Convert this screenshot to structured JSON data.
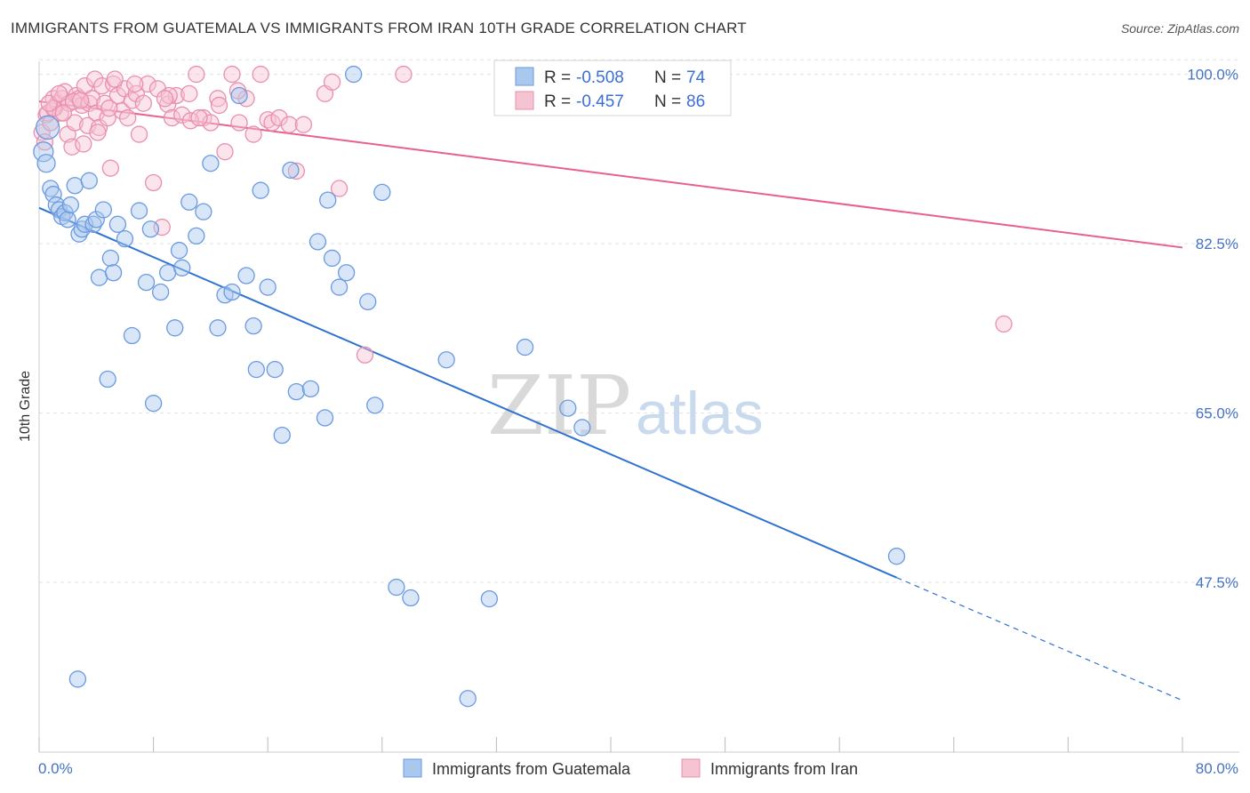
{
  "title": "IMMIGRANTS FROM GUATEMALA VS IMMIGRANTS FROM IRAN 10TH GRADE CORRELATION CHART",
  "source": "Source: ZipAtlas.com",
  "watermark": {
    "zip": "ZIP",
    "atlas": "atlas"
  },
  "stats": [
    {
      "r_label": "R =",
      "r_value": "-0.508",
      "n_label": "N =",
      "n_value": "74",
      "color": "#aac8ee",
      "edge": "#6a9ae0"
    },
    {
      "r_label": "R =",
      "r_value": "-0.457",
      "n_label": "N =",
      "n_value": "86",
      "color": "#f6c3d3",
      "edge": "#e98fae"
    }
  ],
  "legend": [
    {
      "label": "Immigrants from Guatemala",
      "color": "#aac8ee",
      "edge": "#6a9ae0"
    },
    {
      "label": "Immigrants from Iran",
      "color": "#f6c3d3",
      "edge": "#e98fae"
    }
  ],
  "chart_data": {
    "type": "scatter",
    "title": "IMMIGRANTS FROM GUATEMALA VS IMMIGRANTS FROM IRAN 10TH GRADE CORRELATION CHART",
    "xlabel": "",
    "ylabel": "10th Grade",
    "xlim": [
      0,
      80
    ],
    "ylim": [
      30,
      101.5
    ],
    "x_tick_labels": [
      "0.0%",
      "80.0%"
    ],
    "y_ticks": [
      47.5,
      65.0,
      82.5,
      100.0
    ],
    "y_tick_labels": [
      "47.5%",
      "65.0%",
      "82.5%",
      "100.0%"
    ],
    "grid": true,
    "legend_position": "bottom",
    "series": [
      {
        "name": "Immigrants from Guatemala",
        "color": "#4f8ee0",
        "line_color": "#2f73d0",
        "trend": {
          "x0": 0,
          "y0": 86.2,
          "x1": 60,
          "y1": 48.0,
          "dash_to_x": 80,
          "dash_to_y": 35.3
        },
        "x": [
          0.3,
          0.5,
          0.8,
          1.0,
          1.2,
          1.4,
          1.6,
          1.8,
          2.0,
          2.2,
          2.5,
          2.8,
          3.0,
          3.2,
          3.5,
          3.8,
          4.0,
          4.2,
          4.5,
          5.0,
          5.2,
          5.5,
          6.0,
          6.5,
          7.0,
          7.5,
          7.8,
          8.0,
          8.5,
          9.0,
          9.5,
          10.0,
          10.5,
          11.0,
          11.5,
          12.0,
          12.5,
          13.0,
          13.5,
          14.0,
          14.5,
          15.0,
          15.2,
          15.5,
          16.0,
          16.5,
          17.0,
          18.0,
          19.0,
          19.5,
          20.0,
          20.5,
          21.0,
          21.5,
          22.0,
          23.0,
          23.5,
          24.0,
          25.0,
          26.0,
          28.5,
          30.0,
          31.5,
          34.0,
          35.0,
          37.0,
          38.0,
          60.0,
          0.6,
          2.7,
          4.8,
          9.8,
          17.6,
          20.2
        ],
        "y": [
          92.0,
          90.8,
          88.2,
          87.6,
          86.5,
          86.0,
          85.3,
          85.7,
          85.0,
          86.5,
          88.5,
          83.5,
          84.0,
          84.5,
          89.0,
          84.5,
          85.0,
          79.0,
          86.0,
          81.0,
          79.5,
          84.5,
          83.0,
          73.0,
          85.9,
          78.5,
          84.0,
          66.0,
          77.5,
          79.5,
          73.8,
          80.0,
          86.8,
          83.3,
          85.8,
          90.8,
          73.8,
          77.2,
          77.5,
          97.8,
          79.2,
          74.0,
          69.5,
          88.0,
          78.0,
          69.5,
          62.7,
          67.2,
          67.5,
          82.7,
          64.5,
          81.0,
          78.0,
          79.5,
          100.0,
          76.5,
          65.8,
          87.8,
          47.0,
          45.9,
          70.5,
          35.5,
          45.8,
          71.8,
          97.0,
          65.5,
          63.5,
          50.2,
          94.5,
          37.5,
          68.5,
          81.8,
          90.1,
          87.0
        ],
        "sizes": [
          22,
          20,
          18,
          18,
          18,
          18,
          18,
          18,
          18,
          18,
          18,
          18,
          18,
          18,
          18,
          18,
          18,
          18,
          18,
          18,
          18,
          18,
          18,
          18,
          18,
          18,
          18,
          18,
          18,
          18,
          18,
          18,
          18,
          18,
          18,
          18,
          18,
          18,
          18,
          18,
          18,
          18,
          18,
          18,
          18,
          18,
          18,
          18,
          18,
          18,
          18,
          18,
          18,
          18,
          18,
          18,
          18,
          18,
          18,
          18,
          18,
          18,
          18,
          18,
          18,
          18,
          18,
          18,
          26,
          18,
          18,
          18,
          18,
          18
        ]
      },
      {
        "name": "Immigrants from Iran",
        "color": "#f08fb0",
        "line_color": "#e8608e",
        "trend": {
          "x0": 0,
          "y0": 97.2,
          "x1": 80,
          "y1": 82.1
        },
        "x": [
          0.2,
          0.4,
          0.5,
          0.6,
          0.8,
          1.0,
          1.1,
          1.3,
          1.5,
          1.6,
          1.8,
          2.0,
          2.1,
          2.3,
          2.5,
          2.6,
          2.8,
          3.0,
          3.2,
          3.4,
          3.5,
          3.7,
          3.9,
          4.0,
          4.2,
          4.4,
          4.6,
          4.8,
          5.0,
          5.2,
          5.5,
          5.8,
          6.0,
          6.2,
          6.5,
          6.8,
          7.0,
          7.3,
          7.6,
          8.0,
          8.3,
          8.6,
          9.0,
          9.3,
          9.6,
          10.0,
          10.5,
          11.0,
          11.5,
          12.0,
          12.5,
          13.0,
          13.5,
          14.0,
          14.5,
          15.0,
          15.5,
          16.0,
          16.3,
          16.8,
          17.5,
          18.0,
          18.5,
          20.0,
          20.5,
          21.0,
          25.5,
          1.0,
          1.7,
          2.4,
          3.1,
          4.1,
          5.3,
          6.7,
          9.1,
          10.6,
          11.2,
          0.7,
          1.4,
          2.9,
          8.8,
          12.6,
          13.9,
          67.5,
          22.8,
          4.9
        ],
        "y": [
          94.0,
          93.0,
          95.8,
          96.0,
          95.0,
          97.5,
          96.5,
          97.0,
          96.0,
          97.5,
          98.2,
          93.8,
          97.0,
          92.5,
          95.0,
          97.8,
          97.5,
          96.8,
          98.8,
          94.7,
          97.0,
          97.5,
          99.5,
          96.0,
          94.5,
          98.8,
          97.0,
          95.5,
          90.3,
          99.0,
          97.8,
          96.2,
          98.5,
          95.5,
          97.3,
          98.0,
          93.8,
          97.0,
          99.0,
          88.8,
          98.5,
          84.2,
          96.9,
          95.5,
          97.8,
          95.8,
          98.0,
          100.0,
          95.5,
          95.0,
          97.5,
          92.0,
          100.0,
          95.0,
          97.5,
          93.8,
          100.0,
          95.3,
          95.0,
          95.5,
          94.8,
          90.0,
          94.8,
          98.0,
          99.2,
          88.2,
          100.0,
          96.5,
          96.0,
          97.2,
          92.8,
          94.0,
          99.5,
          99.0,
          97.8,
          95.2,
          95.5,
          97.0,
          98.0,
          97.3,
          97.5,
          96.8,
          98.3,
          74.2,
          71.0,
          96.5
        ],
        "sizes": [
          18,
          18,
          18,
          18,
          18,
          18,
          18,
          18,
          18,
          18,
          18,
          18,
          18,
          18,
          18,
          18,
          18,
          18,
          18,
          18,
          18,
          18,
          18,
          18,
          18,
          18,
          18,
          18,
          18,
          18,
          18,
          18,
          18,
          18,
          18,
          18,
          18,
          18,
          18,
          18,
          18,
          18,
          18,
          18,
          18,
          18,
          18,
          18,
          18,
          18,
          18,
          18,
          18,
          18,
          18,
          18,
          18,
          18,
          18,
          18,
          18,
          18,
          18,
          18,
          18,
          18,
          18,
          18,
          18,
          18,
          18,
          18,
          18,
          18,
          18,
          18,
          18,
          18,
          18,
          18,
          18,
          18,
          18,
          18,
          18,
          18
        ]
      }
    ]
  }
}
